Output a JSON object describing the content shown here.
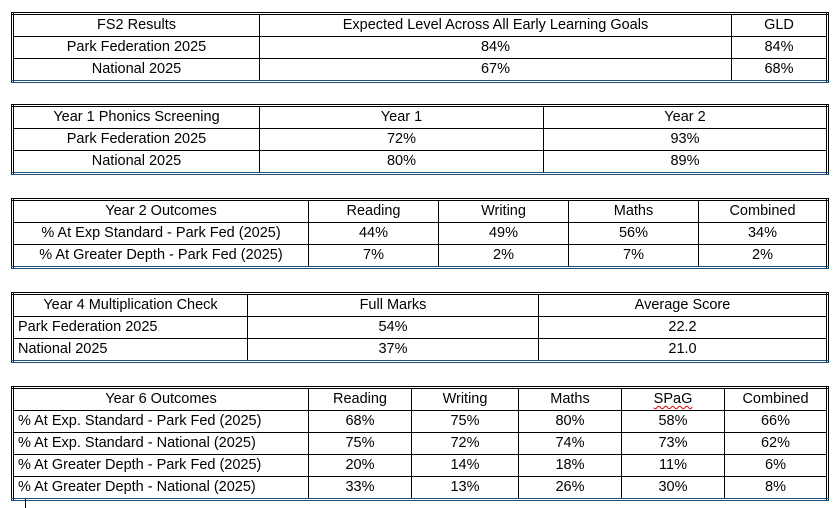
{
  "tables": [
    {
      "name": "fs2-results-table",
      "header": [
        "FS2 Results",
        "Expected Level Across All Early Learning Goals",
        "GLD"
      ],
      "rows": [
        [
          "Park Federation 2025",
          "84%",
          "84%"
        ],
        [
          "National 2025",
          "67%",
          "68%"
        ]
      ]
    },
    {
      "name": "year1-phonics-table",
      "header": [
        "Year 1 Phonics Screening",
        "Year 1",
        "Year 2"
      ],
      "rows": [
        [
          "Park Federation 2025",
          "72%",
          "93%"
        ],
        [
          "National 2025",
          "80%",
          "89%"
        ]
      ]
    },
    {
      "name": "year2-outcomes-table",
      "header": [
        "Year 2 Outcomes",
        "Reading",
        "Writing",
        "Maths",
        "Combined"
      ],
      "rows": [
        [
          "% At Exp Standard - Park Fed (2025)",
          "44%",
          "49%",
          "56%",
          "34%"
        ],
        [
          "% At Greater Depth - Park Fed (2025)",
          "7%",
          "2%",
          "7%",
          "2%"
        ]
      ]
    },
    {
      "name": "year4-multiplication-table",
      "header": [
        "Year 4 Multiplication Check",
        "Full Marks",
        "Average Score"
      ],
      "rows": [
        [
          "Park Federation 2025",
          "54%",
          "22.2"
        ],
        [
          "National 2025",
          "37%",
          "21.0"
        ]
      ]
    },
    {
      "name": "year6-outcomes-table",
      "header": [
        "Year 6 Outcomes",
        "Reading",
        "Writing",
        "Maths",
        "SPaG",
        "Combined"
      ],
      "rows": [
        [
          "% At Exp. Standard - Park Fed (2025)",
          "68%",
          "75%",
          "80%",
          "58%",
          "66%"
        ],
        [
          "% At Exp. Standard - National (2025)",
          "75%",
          "72%",
          "74%",
          "73%",
          "62%"
        ],
        [
          "% At Greater Depth - Park Fed (2025)",
          "20%",
          "14%",
          "18%",
          "11%",
          "6%"
        ],
        [
          "% At Greater Depth - National (2025)",
          "33%",
          "13%",
          "26%",
          "30%",
          "8%"
        ]
      ]
    }
  ]
}
